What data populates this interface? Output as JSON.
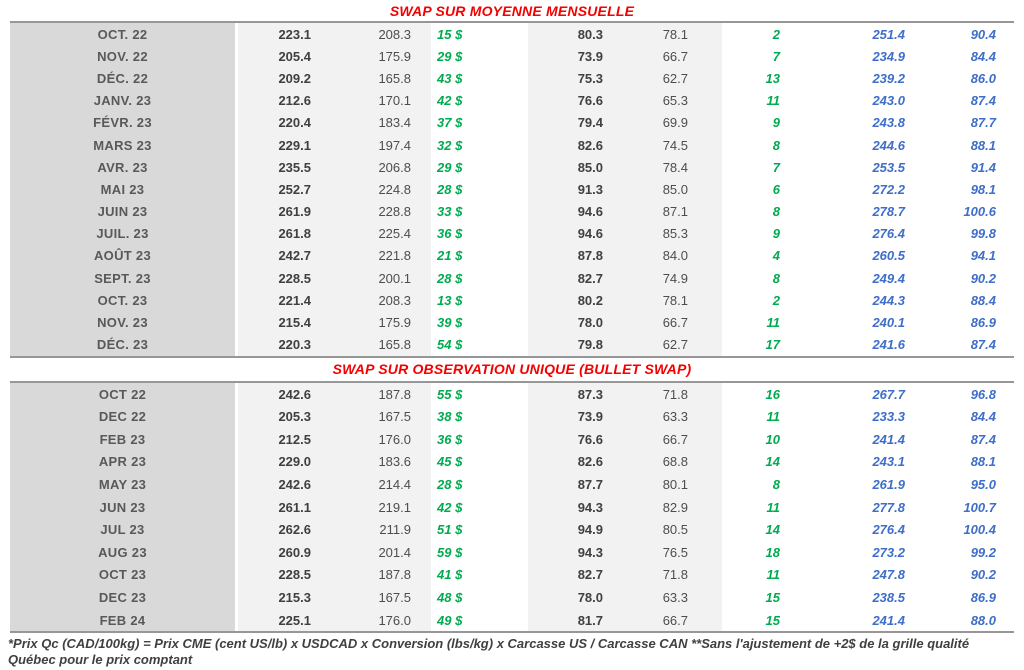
{
  "colors": {
    "title_red": "#f50000",
    "spread_green": "#00ab50",
    "swap_blue": "#3e6ec8",
    "month_col_bg": "#d9d9d9",
    "value_col_bg": "#f2f2f2"
  },
  "columns": [
    "month-label",
    "value-1",
    "value-2",
    "spread-dollar",
    "value-3",
    "value-4",
    "spread-unit",
    "blue-value-1",
    "blue-value-2"
  ],
  "tables": [
    {
      "title": "SWAP SUR MOYENNE MENSUELLE",
      "rows": [
        [
          "OCT. 22",
          "223.1",
          "208.3",
          "15 $",
          "80.3",
          "78.1",
          "2",
          "251.4",
          "90.4"
        ],
        [
          "NOV. 22",
          "205.4",
          "175.9",
          "29 $",
          "73.9",
          "66.7",
          "7",
          "234.9",
          "84.4"
        ],
        [
          "DÉC. 22",
          "209.2",
          "165.8",
          "43 $",
          "75.3",
          "62.7",
          "13",
          "239.2",
          "86.0"
        ],
        [
          "JANV. 23",
          "212.6",
          "170.1",
          "42 $",
          "76.6",
          "65.3",
          "11",
          "243.0",
          "87.4"
        ],
        [
          "FÉVR. 23",
          "220.4",
          "183.4",
          "37 $",
          "79.4",
          "69.9",
          "9",
          "243.8",
          "87.7"
        ],
        [
          "MARS 23",
          "229.1",
          "197.4",
          "32 $",
          "82.6",
          "74.5",
          "8",
          "244.6",
          "88.1"
        ],
        [
          "AVR. 23",
          "235.5",
          "206.8",
          "29 $",
          "85.0",
          "78.4",
          "7",
          "253.5",
          "91.4"
        ],
        [
          "MAI 23",
          "252.7",
          "224.8",
          "28 $",
          "91.3",
          "85.0",
          "6",
          "272.2",
          "98.1"
        ],
        [
          "JUIN 23",
          "261.9",
          "228.8",
          "33 $",
          "94.6",
          "87.1",
          "8",
          "278.7",
          "100.6"
        ],
        [
          "JUIL. 23",
          "261.8",
          "225.4",
          "36 $",
          "94.6",
          "85.3",
          "9",
          "276.4",
          "99.8"
        ],
        [
          "AOÛT 23",
          "242.7",
          "221.8",
          "21 $",
          "87.8",
          "84.0",
          "4",
          "260.5",
          "94.1"
        ],
        [
          "SEPT. 23",
          "228.5",
          "200.1",
          "28 $",
          "82.7",
          "74.9",
          "8",
          "249.4",
          "90.2"
        ],
        [
          "OCT. 23",
          "221.4",
          "208.3",
          "13 $",
          "80.2",
          "78.1",
          "2",
          "244.3",
          "88.4"
        ],
        [
          "NOV. 23",
          "215.4",
          "175.9",
          "39 $",
          "78.0",
          "66.7",
          "11",
          "240.1",
          "86.9"
        ],
        [
          "DÉC. 23",
          "220.3",
          "165.8",
          "54 $",
          "79.8",
          "62.7",
          "17",
          "241.6",
          "87.4"
        ]
      ]
    },
    {
      "title": "SWAP SUR OBSERVATION UNIQUE (BULLET SWAP)",
      "rows": [
        [
          "OCT 22",
          "242.6",
          "187.8",
          "55 $",
          "87.3",
          "71.8",
          "16",
          "267.7",
          "96.8"
        ],
        [
          "DEC 22",
          "205.3",
          "167.5",
          "38 $",
          "73.9",
          "63.3",
          "11",
          "233.3",
          "84.4"
        ],
        [
          "FEB 23",
          "212.5",
          "176.0",
          "36 $",
          "76.6",
          "66.7",
          "10",
          "241.4",
          "87.4"
        ],
        [
          "APR 23",
          "229.0",
          "183.6",
          "45 $",
          "82.6",
          "68.8",
          "14",
          "243.1",
          "88.1"
        ],
        [
          "MAY 23",
          "242.6",
          "214.4",
          "28 $",
          "87.7",
          "80.1",
          "8",
          "261.9",
          "95.0"
        ],
        [
          "JUN 23",
          "261.1",
          "219.1",
          "42 $",
          "94.3",
          "82.9",
          "11",
          "277.8",
          "100.7"
        ],
        [
          "JUL 23",
          "262.6",
          "211.9",
          "51 $",
          "94.9",
          "80.5",
          "14",
          "276.4",
          "100.4"
        ],
        [
          "AUG 23",
          "260.9",
          "201.4",
          "59 $",
          "94.3",
          "76.5",
          "18",
          "273.2",
          "99.2"
        ],
        [
          "OCT 23",
          "228.5",
          "187.8",
          "41 $",
          "82.7",
          "71.8",
          "11",
          "247.8",
          "90.2"
        ],
        [
          "DEC 23",
          "215.3",
          "167.5",
          "48 $",
          "78.0",
          "63.3",
          "15",
          "238.5",
          "86.9"
        ],
        [
          "FEB 24",
          "225.1",
          "176.0",
          "49 $",
          "81.7",
          "66.7",
          "15",
          "241.4",
          "88.0"
        ]
      ]
    }
  ],
  "page": {
    "footnote": "*Prix Qc (CAD/100kg) = Prix CME (cent US/lb) x USDCAD x Conversion (lbs/kg) x Carcasse US / Carcasse CAN **Sans l'ajustement de +2$ de la grille qualité Québec pour le prix comptant"
  }
}
